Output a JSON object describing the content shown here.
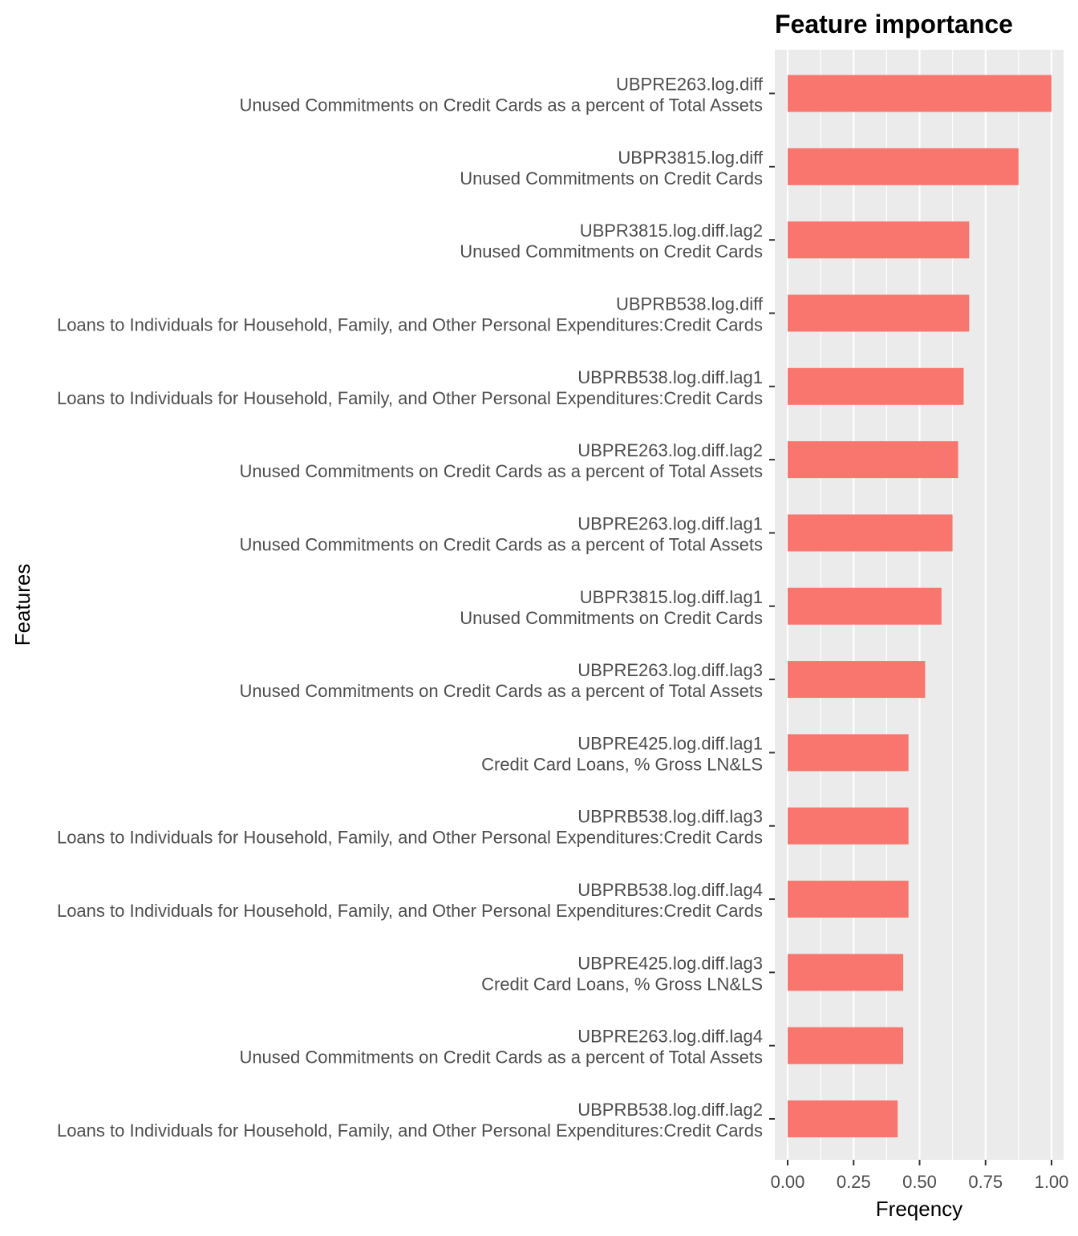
{
  "chart_data": {
    "type": "bar",
    "orientation": "horizontal",
    "title": "Feature importance",
    "xlabel": "Freqency",
    "ylabel": "Features",
    "xlim": [
      0,
      1.0
    ],
    "x_ticks": [
      "0.00",
      "0.25",
      "0.50",
      "0.75",
      "1.00"
    ],
    "x_tick_values": [
      0,
      0.25,
      0.5,
      0.75,
      1.0
    ],
    "grid": true,
    "legend": "none",
    "categories": [
      {
        "code": "UBPRE263.log.diff",
        "description": "Unused Commitments on Credit Cards as a percent of Total Assets"
      },
      {
        "code": "UBPR3815.log.diff",
        "description": "Unused Commitments on Credit Cards"
      },
      {
        "code": "UBPR3815.log.diff.lag2",
        "description": "Unused Commitments on Credit Cards"
      },
      {
        "code": "UBPRB538.log.diff",
        "description": "Loans to Individuals for Household, Family, and Other Personal Expenditures:Credit Cards"
      },
      {
        "code": "UBPRB538.log.diff.lag1",
        "description": "Loans to Individuals for Household, Family, and Other Personal Expenditures:Credit Cards"
      },
      {
        "code": "UBPRE263.log.diff.lag2",
        "description": "Unused Commitments on Credit Cards as a percent of Total Assets"
      },
      {
        "code": "UBPRE263.log.diff.lag1",
        "description": "Unused Commitments on Credit Cards as a percent of Total Assets"
      },
      {
        "code": "UBPR3815.log.diff.lag1",
        "description": "Unused Commitments on Credit Cards"
      },
      {
        "code": "UBPRE263.log.diff.lag3",
        "description": "Unused Commitments on Credit Cards as a percent of Total Assets"
      },
      {
        "code": "UBPRE425.log.diff.lag1",
        "description": "Credit Card Loans, % Gross LN&LS"
      },
      {
        "code": "UBPRB538.log.diff.lag3",
        "description": "Loans to Individuals for Household, Family, and Other Personal Expenditures:Credit Cards"
      },
      {
        "code": "UBPRB538.log.diff.lag4",
        "description": "Loans to Individuals for Household, Family, and Other Personal Expenditures:Credit Cards"
      },
      {
        "code": "UBPRE425.log.diff.lag3",
        "description": "Credit Card Loans, % Gross LN&LS"
      },
      {
        "code": "UBPRE263.log.diff.lag4",
        "description": "Unused Commitments on Credit Cards as a percent of Total Assets"
      },
      {
        "code": "UBPRB538.log.diff.lag2",
        "description": "Loans to Individuals for Household, Family, and Other Personal Expenditures:Credit Cards"
      }
    ],
    "values": [
      1.0,
      0.875,
      0.688,
      0.688,
      0.667,
      0.646,
      0.625,
      0.583,
      0.521,
      0.458,
      0.458,
      0.458,
      0.438,
      0.438,
      0.417
    ],
    "colors": {
      "bar": "#F8766D",
      "panel_background": "#EBEBEB",
      "grid": "#FFFFFF",
      "tick_label": "#4D4D4D",
      "text": "#000000"
    }
  }
}
